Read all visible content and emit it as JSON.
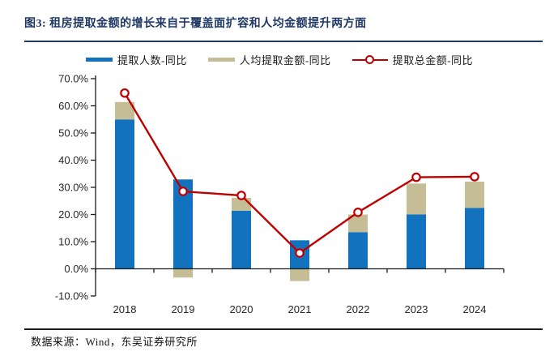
{
  "header": {
    "title": "图3: 租房提取金额的增长来自于覆盖面扩容和人均金额提升两方面",
    "accent_color": "#1f3864"
  },
  "footer": {
    "source": "数据来源：Wind，东吴证券研究所",
    "rule_color": "#1a1a1a"
  },
  "chart_data": {
    "type": "bar",
    "subtype": "stacked-bar-with-line",
    "categories": [
      "2018",
      "2019",
      "2020",
      "2021",
      "2022",
      "2023",
      "2024"
    ],
    "series": [
      {
        "name": "提取人数-同比",
        "type": "bar",
        "stacked": true,
        "color": "#1272bd",
        "values": [
          55.0,
          32.9,
          21.4,
          10.5,
          13.5,
          20.0,
          22.4
        ]
      },
      {
        "name": "人均提取金额-同比",
        "type": "bar",
        "stacked": true,
        "color": "#c5bd96",
        "values": [
          6.4,
          -3.2,
          4.7,
          -4.5,
          6.5,
          11.4,
          9.7
        ]
      },
      {
        "name": "提取总金额-同比",
        "type": "line",
        "marker": "open-circle",
        "color": "#c00000",
        "values": [
          64.7,
          28.5,
          27.0,
          5.8,
          20.8,
          33.7,
          33.9
        ]
      }
    ],
    "ylim": [
      -10,
      70
    ],
    "ytick_values": [
      70,
      60,
      50,
      40,
      30,
      20,
      10,
      0,
      -10
    ],
    "ytick_labels": [
      "70.0%",
      "60.0%",
      "50.0%",
      "40.0%",
      "30.0%",
      "20.0%",
      "10.0%",
      "0.0%",
      "-10.0%"
    ],
    "axis_color": "#1a1a1a",
    "grid": false,
    "legend_position": "top"
  }
}
